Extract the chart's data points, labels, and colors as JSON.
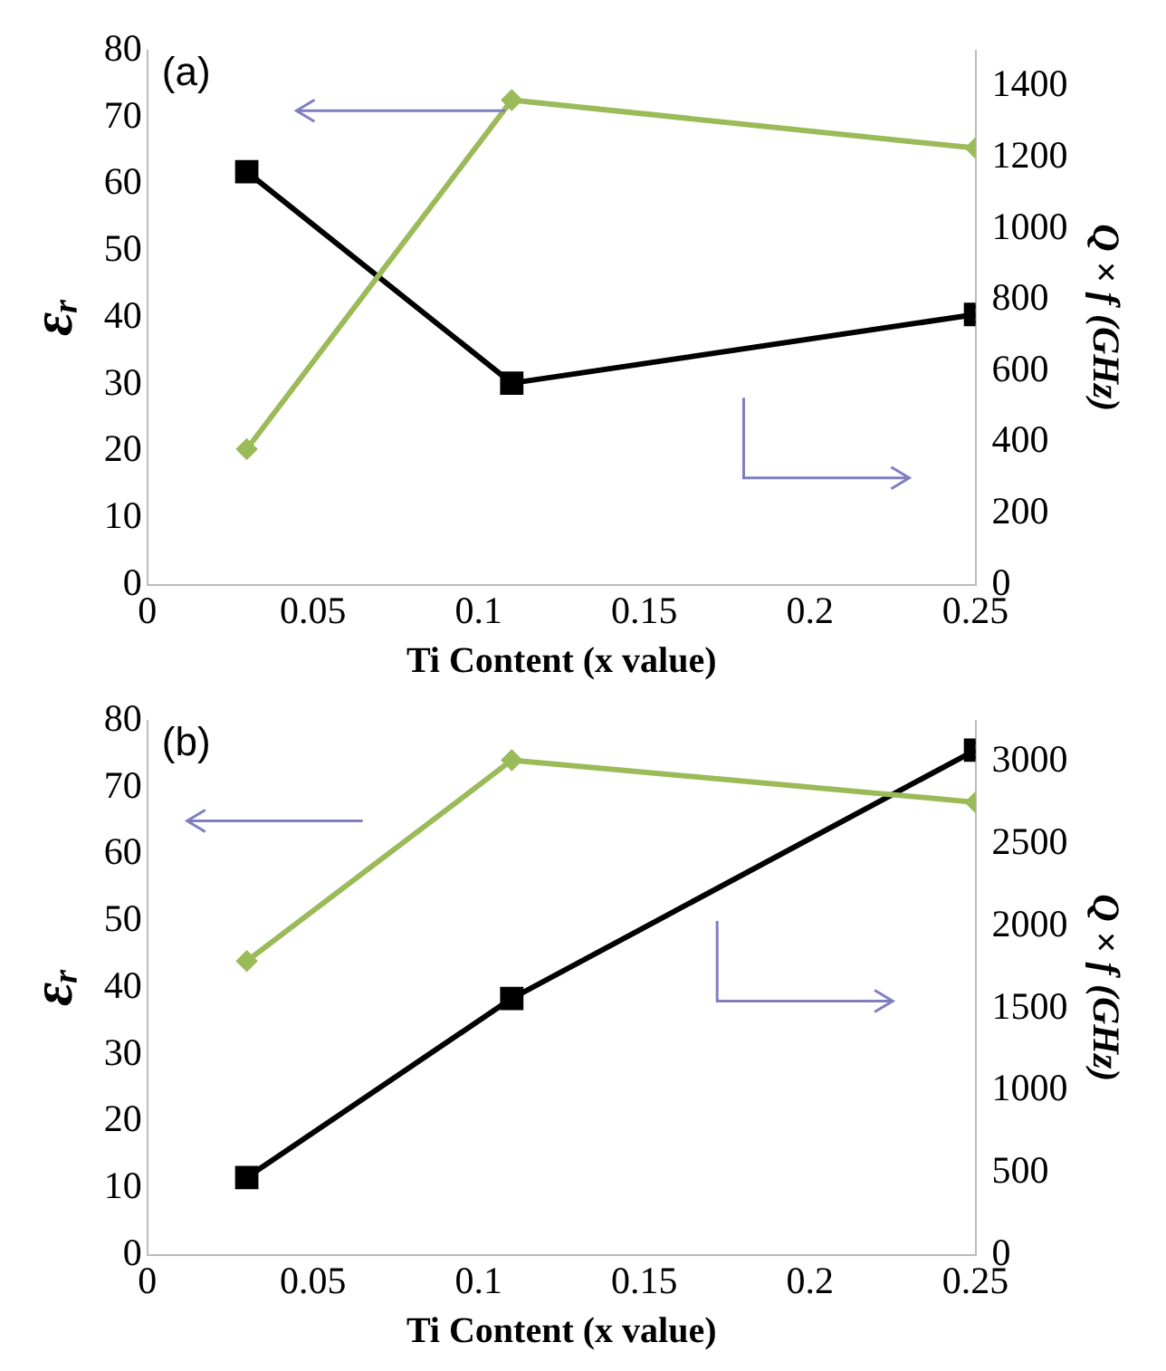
{
  "chart_data": [
    {
      "type": "line",
      "annotations": [
        "(a)"
      ],
      "xlabel": "Ti Content (x value)",
      "ylabel": "εᵣ",
      "y2label": "Q × f (GHz)",
      "x": [
        0.03,
        0.11,
        0.25
      ],
      "xlim": [
        0,
        0.25
      ],
      "xticks": [
        0,
        0.05,
        0.1,
        0.15,
        0.2,
        0.25
      ],
      "ylim": [
        0,
        80
      ],
      "yticks": [
        0,
        10,
        20,
        30,
        40,
        50,
        60,
        70,
        80
      ],
      "y2lim": [
        0,
        1500
      ],
      "y2ticks": [
        0,
        200,
        400,
        600,
        800,
        1000,
        1200,
        1400
      ],
      "grid": false,
      "legend": false,
      "series": [
        {
          "color": "#9bbb59",
          "marker": "diamond",
          "values": [
            20.3,
            72.6,
            65.4
          ]
        },
        {
          "color": "#000000",
          "marker": "square",
          "axis": "y2",
          "values": [
            1160,
            566,
            759
          ]
        }
      ]
    },
    {
      "type": "line",
      "annotations": [
        "(b)"
      ],
      "xlabel": "Ti Content (x value)",
      "ylabel": "εᵣ",
      "y2label": "Q × f (GHz)",
      "x": [
        0.03,
        0.11,
        0.25
      ],
      "xlim": [
        0,
        0.25
      ],
      "xticks": [
        0,
        0.05,
        0.1,
        0.15,
        0.2,
        0.25
      ],
      "ylim": [
        0,
        80
      ],
      "yticks": [
        0,
        10,
        20,
        30,
        40,
        50,
        60,
        70,
        80
      ],
      "y2lim": [
        0,
        3250
      ],
      "y2ticks": [
        0,
        500,
        1000,
        1500,
        2000,
        2500,
        3000
      ],
      "grid": false,
      "legend": false,
      "series": [
        {
          "color": "#9bbb59",
          "marker": "diamond",
          "values": [
            44.0,
            74.1,
            67.8
          ]
        },
        {
          "color": "#000000",
          "marker": "square",
          "axis": "y2",
          "values": [
            470,
            1560,
            3072
          ]
        }
      ]
    }
  ]
}
